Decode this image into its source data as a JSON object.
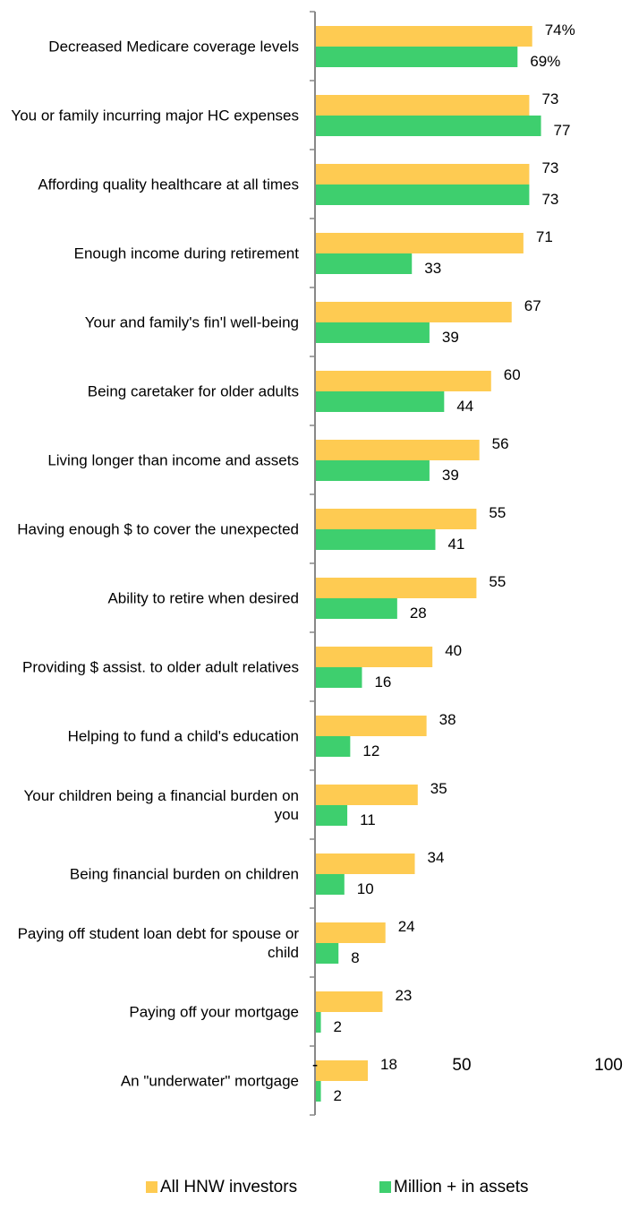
{
  "chart_data": {
    "type": "barh",
    "categories": [
      "Decreased Medicare coverage levels",
      "You or family incurring major HC expenses",
      "Affording quality healthcare at all times",
      "Enough income during retirement",
      "Your and family's fin'l well-being",
      "Being caretaker for older adults",
      "Living longer than income and assets",
      "Having enough $ to cover the unexpected",
      "Ability to retire when desired",
      "Providing $ assist. to older adult relatives",
      "Helping to fund a child's education",
      "Your children being a financial burden on you",
      "Being financial burden on children",
      "Paying off student loan debt for spouse or child",
      "Paying off your mortgage",
      "An \"underwater\" mortgage"
    ],
    "series": [
      {
        "name": "All HNW investors",
        "color": "#fecb52",
        "values": [
          74,
          73,
          73,
          71,
          67,
          60,
          56,
          55,
          55,
          40,
          38,
          35,
          34,
          24,
          23,
          18
        ],
        "value_labels": [
          "74%",
          "73",
          "73",
          "71",
          "67",
          "60",
          "56",
          "55",
          "55",
          "40",
          "38",
          "35",
          "34",
          "24",
          "23",
          "18"
        ]
      },
      {
        "name": "Million + in assets",
        "color": "#3ecf6e",
        "values": [
          69,
          77,
          73,
          33,
          39,
          44,
          39,
          41,
          28,
          16,
          12,
          11,
          10,
          8,
          2,
          2
        ],
        "value_labels": [
          "69%",
          "77",
          "73",
          "33",
          "39",
          "44",
          "39",
          "41",
          "28",
          "16",
          "12",
          "11",
          "10",
          "8",
          "2",
          "2"
        ]
      }
    ],
    "xlim": [
      0,
      100
    ],
    "xticks": [
      {
        "value": 0,
        "label": "-"
      },
      50,
      100
    ],
    "legend": "bottom"
  }
}
